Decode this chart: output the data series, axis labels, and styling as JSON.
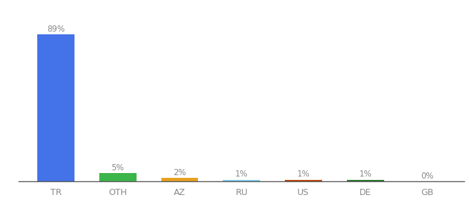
{
  "categories": [
    "TR",
    "OTH",
    "AZ",
    "RU",
    "US",
    "DE",
    "GB"
  ],
  "values": [
    89,
    5,
    2,
    1,
    1,
    1,
    0
  ],
  "labels": [
    "89%",
    "5%",
    "2%",
    "1%",
    "1%",
    "1%",
    "0%"
  ],
  "bar_colors": [
    "#4472e8",
    "#3cb54a",
    "#e8a020",
    "#7ecfef",
    "#c0450a",
    "#2d7a2d",
    "#aaaaaa"
  ],
  "background_color": "#ffffff",
  "label_color": "#888888",
  "bar_label_color": "#888888",
  "ylim": [
    0,
    100
  ],
  "figsize": [
    6.8,
    3.0
  ],
  "dpi": 100
}
